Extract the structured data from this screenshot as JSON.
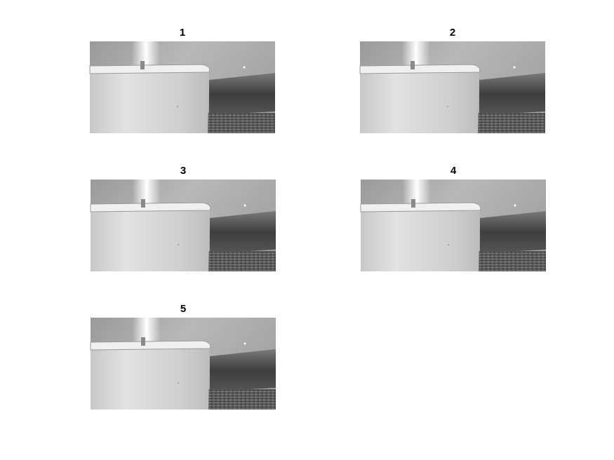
{
  "panels": [
    {
      "title": "1"
    },
    {
      "title": "2"
    },
    {
      "title": "3"
    },
    {
      "title": "4"
    },
    {
      "title": "5"
    }
  ]
}
